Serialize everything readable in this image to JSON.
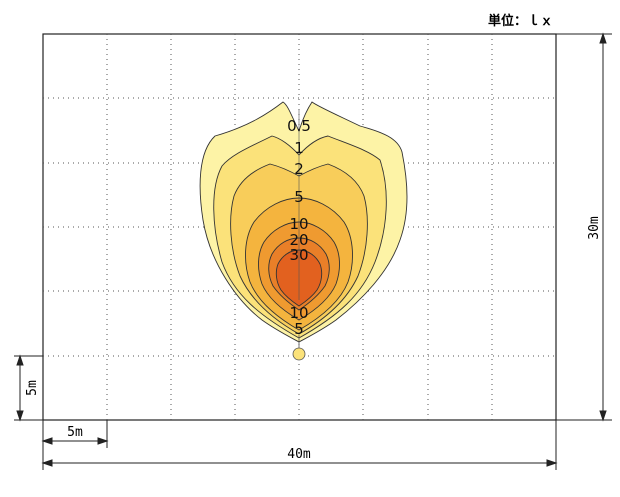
{
  "unit_label": "単位：ｌｘ",
  "dimensions": {
    "width": "40m",
    "height": "30m",
    "grid_x": "5m",
    "grid_y": "5m"
  },
  "contour_labels": {
    "l05": "0.5",
    "l1": "1",
    "l2": "2",
    "l5": "5",
    "l10": "10",
    "l20": "20",
    "l30": "30",
    "l10b": "10",
    "l5b": "5"
  },
  "colors": {
    "c05": "#fdf3a6",
    "c1": "#fbe27a",
    "c2": "#f8cd5a",
    "c5": "#f4b43e",
    "c10": "#ef9a30",
    "c20": "#e97f28",
    "c30": "#e2611f",
    "grid": "#555555",
    "frame": "#222222"
  }
}
